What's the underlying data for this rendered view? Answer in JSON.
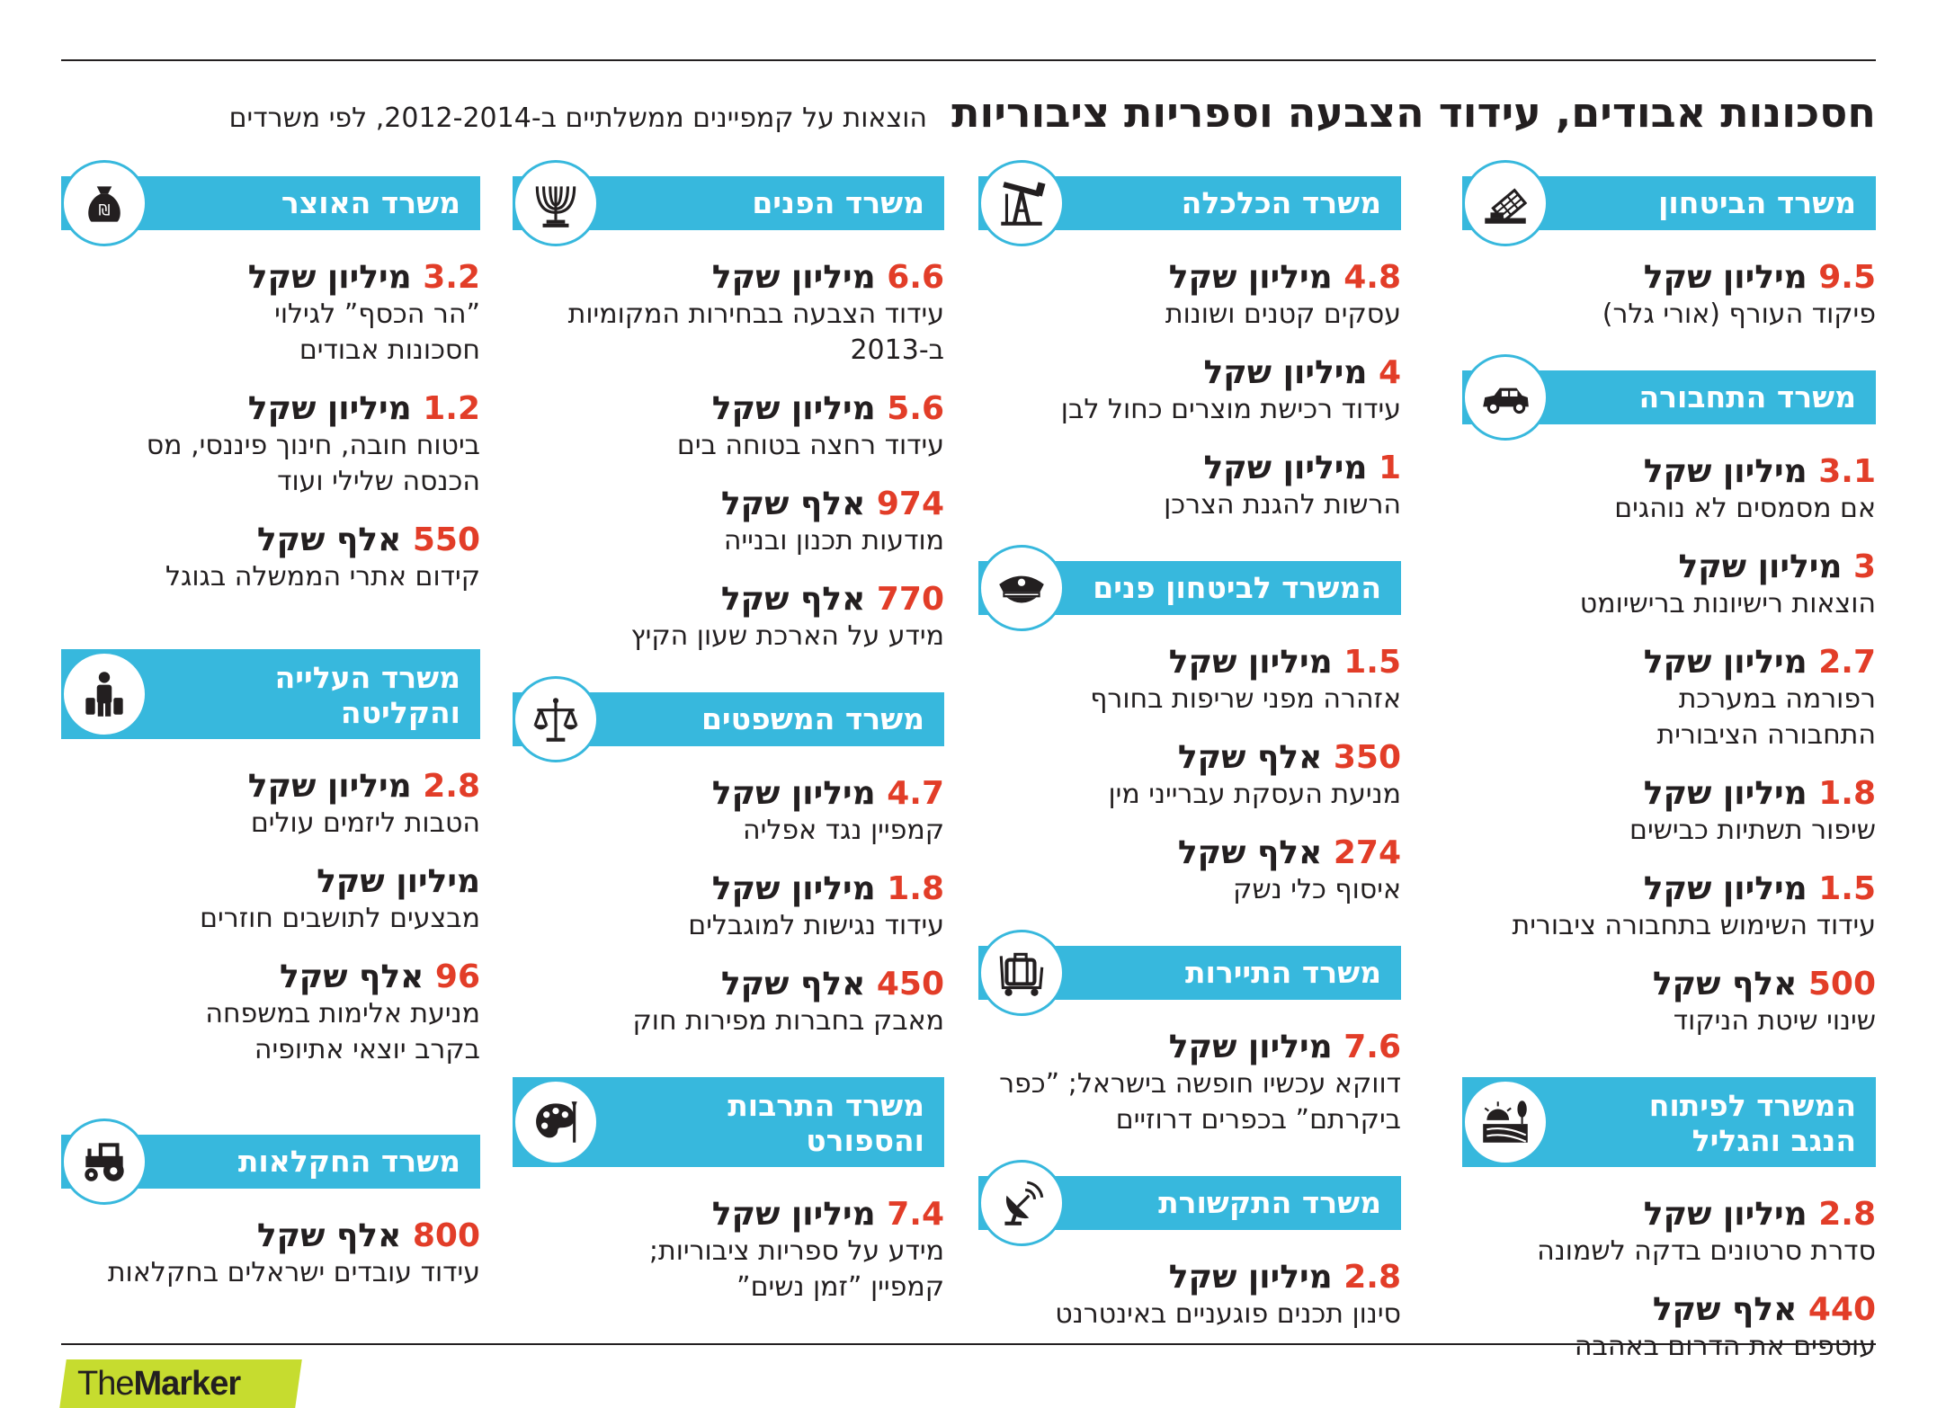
{
  "header": {
    "title": "חסכונות אבודים, עידוד הצבעה וספריות ציבוריות",
    "subtitle": "הוצאות על קמפיינים ממשלתיים ב-2012-2014, לפי משרדים"
  },
  "logo": {
    "pre": "The",
    "main": "Marker"
  },
  "colors": {
    "accent": "#37b8dd",
    "number": "#e23d28",
    "logo": "#c6dc2f"
  },
  "columns": [
    [
      {
        "name": "משרד הביטחון",
        "icon": "missile-launcher-icon",
        "items": [
          {
            "num": "9.5",
            "unit": "מיליון שקל",
            "desc": "פיקוד העורף (אורי גלר)"
          }
        ]
      },
      {
        "name": "משרד התחבורה",
        "icon": "car-icon",
        "items": [
          {
            "num": "3.1",
            "unit": "מיליון שקל",
            "desc": "אם מסמסים לא נוהגים"
          },
          {
            "num": "3",
            "unit": "מיליון שקל",
            "desc": "הוצאות רישיונות ברישיומט"
          },
          {
            "num": "2.7",
            "unit": "מיליון שקל",
            "desc": "רפורמה במערכת התחבורה הציבורית"
          },
          {
            "num": "1.8",
            "unit": "מיליון שקל",
            "desc": "שיפור תשתיות כבישים"
          },
          {
            "num": "1.5",
            "unit": "מיליון שקל",
            "desc": "עידוד השימוש בתחבורה ציבורית"
          },
          {
            "num": "500",
            "unit": "אלף שקל",
            "desc": "שינוי שיטת הניקוד"
          }
        ]
      },
      {
        "name": "המשרד לפיתוח הנגב והגליל",
        "icon": "sunrise-field-icon",
        "items": [
          {
            "num": "2.8",
            "unit": "מיליון שקל",
            "desc": "סדרת סרטונים בדקה לשמונה"
          },
          {
            "num": "440",
            "unit": "אלף שקל",
            "desc": "עוטפים את הדרום באהבה"
          }
        ]
      }
    ],
    [
      {
        "name": "משרד הכלכלה",
        "icon": "oil-pump-icon",
        "items": [
          {
            "num": "4.8",
            "unit": "מיליון שקל",
            "desc": "עסקים קטנים ושונות"
          },
          {
            "num": "4",
            "unit": "מיליון שקל",
            "desc": "עידוד רכישת מוצרים כחול לבן"
          },
          {
            "num": "1",
            "unit": "מיליון שקל",
            "desc": "הרשות להגנת הצרכן"
          }
        ]
      },
      {
        "name": "המשרד לביטחון פנים",
        "icon": "police-cap-icon",
        "items": [
          {
            "num": "1.5",
            "unit": "מיליון שקל",
            "desc": "אזהרה מפני שריפות בחורף"
          },
          {
            "num": "350",
            "unit": "אלף שקל",
            "desc": "מניעת העסקת עברייני מין"
          },
          {
            "num": "274",
            "unit": "אלף שקל",
            "desc": "איסוף כלי נשק"
          }
        ]
      },
      {
        "name": "משרד התיירות",
        "icon": "luggage-cart-icon",
        "items": [
          {
            "num": "7.6",
            "unit": "מיליון שקל",
            "desc": "דווקא עכשיו חופשה בישראל; ”כפר ביקרתם” בכפרים דרוזיים"
          }
        ]
      },
      {
        "name": "משרד התקשורת",
        "icon": "satellite-dish-icon",
        "items": [
          {
            "num": "2.8",
            "unit": "מיליון שקל",
            "desc": "סינון תכנים פוגעניים באינטרנט"
          }
        ]
      }
    ],
    [
      {
        "name": "משרד הפנים",
        "icon": "menorah-icon",
        "items": [
          {
            "num": "6.6",
            "unit": "מיליון שקל",
            "desc": "עידוד הצבעה בבחירות המקומיות ב-2013"
          },
          {
            "num": "5.6",
            "unit": "מיליון שקל",
            "desc": "עידוד רחצה בטוחה בים"
          },
          {
            "num": "974",
            "unit": "אלף שקל",
            "desc": "מודעות תכנון ובנייה"
          },
          {
            "num": "770",
            "unit": "אלף שקל",
            "desc": "מידע על הארכת שעון הקיץ"
          }
        ]
      },
      {
        "name": "משרד המשפטים",
        "icon": "scales-icon",
        "items": [
          {
            "num": "4.7",
            "unit": "מיליון שקל",
            "desc": "קמפיין נגד אפליה"
          },
          {
            "num": "1.8",
            "unit": "מיליון שקל",
            "desc": "עידוד נגישות למוגבלים"
          },
          {
            "num": "450",
            "unit": "אלף שקל",
            "desc": "מאבק בחברות מפירות חוק"
          }
        ]
      },
      {
        "name": "משרד התרבות והספורט",
        "icon": "palette-icon",
        "items": [
          {
            "num": "7.4",
            "unit": "מיליון שקל",
            "desc": "מידע על ספריות ציבוריות; קמפיין ”זמן נשים”"
          }
        ]
      }
    ],
    [
      {
        "name": "משרד האוצר",
        "icon": "money-bag-icon",
        "items": [
          {
            "num": "3.2",
            "unit": "מיליון שקל",
            "desc": "”הר הכסף” לגילוי חסכונות אבודים"
          },
          {
            "num": "1.2",
            "unit": "מיליון שקל",
            "desc": "ביטוח חובה, חינוך פיננסי, מס הכנסה שלילי ועוד"
          },
          {
            "num": "550",
            "unit": "אלף שקל",
            "desc": "קידום אתרי הממשלה בגוגל"
          }
        ]
      },
      {
        "name": "משרד העלייה והקליטה",
        "icon": "person-luggage-icon",
        "items": [
          {
            "num": "2.8",
            "unit": "מיליון שקל",
            "desc": "הטבות ליזמים עולים"
          },
          {
            "num": "",
            "unit": "מיליון שקל",
            "desc": "מבצעים לתושבים חוזרים"
          },
          {
            "num": "96",
            "unit": "אלף שקל",
            "desc": "מניעת אלימות במשפחה בקרב יוצאי אתיופיה"
          }
        ]
      },
      {
        "name": "משרד החקלאות",
        "icon": "tractor-icon",
        "items": [
          {
            "num": "800",
            "unit": "אלף שקל",
            "desc": "עידוד עובדים ישראלים בחקלאות"
          }
        ]
      }
    ]
  ]
}
